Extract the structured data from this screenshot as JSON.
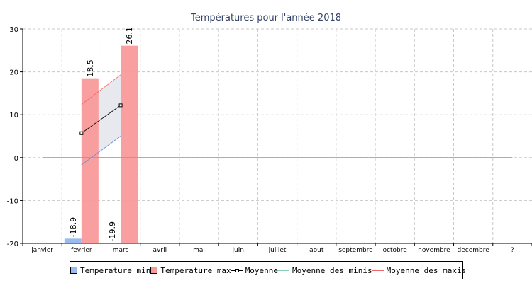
{
  "chart_data": {
    "type": "bar",
    "title": "Températures pour l'année 2018",
    "categories": [
      "janvier",
      "fevrier",
      "mars",
      "avril",
      "mai",
      "juin",
      "juillet",
      "aout",
      "septembre",
      "octobre",
      "novembre",
      "decembre",
      "?"
    ],
    "ylim": [
      -20,
      30
    ],
    "yticks": [
      -20,
      -10,
      0,
      10,
      20,
      30
    ],
    "grid": true,
    "legend_position": "bottom",
    "series": [
      {
        "name": "Temperature min",
        "type": "bar",
        "color": "#99bbf0",
        "values": [
          null,
          -18.9,
          -19.9,
          null,
          null,
          null,
          null,
          null,
          null,
          null,
          null,
          null,
          null
        ],
        "labels": [
          null,
          "-18.9",
          "-19.9",
          null,
          null,
          null,
          null,
          null,
          null,
          null,
          null,
          null,
          null
        ]
      },
      {
        "name": "Temperature max",
        "type": "bar",
        "color": "#f99a9a",
        "values": [
          null,
          18.5,
          26.1,
          null,
          null,
          null,
          null,
          null,
          null,
          null,
          null,
          null,
          null
        ],
        "labels": [
          null,
          "18.5",
          "26.1",
          null,
          null,
          null,
          null,
          null,
          null,
          null,
          null,
          null,
          null
        ]
      },
      {
        "name": "Moyenne",
        "type": "line",
        "color": "#000000",
        "marker": "square",
        "values": [
          null,
          5.7,
          12.2,
          null,
          null,
          null,
          null,
          null,
          null,
          null,
          null,
          null,
          null
        ]
      },
      {
        "name": "Moyenne des minis",
        "type": "line",
        "color": "#6688dd",
        "values": [
          null,
          -1.7,
          5.0,
          null,
          null,
          null,
          null,
          null,
          null,
          null,
          null,
          null,
          null
        ]
      },
      {
        "name": "Moyenne des maxis",
        "type": "line",
        "color": "#ee6666",
        "values": [
          null,
          12.4,
          19.3,
          null,
          null,
          null,
          null,
          null,
          null,
          null,
          null,
          null,
          null
        ]
      }
    ],
    "range_fill_color": "#e8e9ee",
    "zero_line_color": "#8899bb"
  }
}
